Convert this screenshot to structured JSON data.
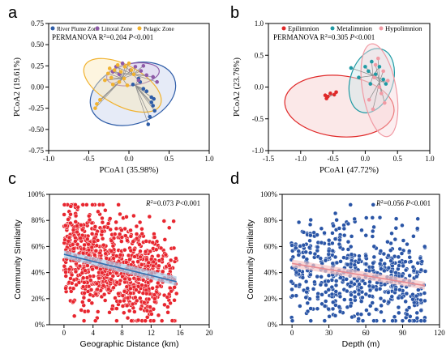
{
  "figure": {
    "panel_letters": [
      "a",
      "b",
      "c",
      "d"
    ]
  },
  "chart_data": [
    {
      "panel": "a",
      "type": "scatter",
      "subtype": "PCoA ordination with confidence ellipses and centroid spiders",
      "xlabel": "PCoA1 (35.98%)",
      "ylabel": "PCoA2 (19.61%)",
      "xlim": [
        -1.0,
        1.0
      ],
      "ylim": [
        -0.75,
        0.75
      ],
      "xticks": [
        "-1.0",
        "-0.5",
        "0.0",
        "0.5",
        "1.0"
      ],
      "yticks": [
        "-0.75",
        "-0.50",
        "-0.25",
        "0.00",
        "0.25",
        "0.50",
        "0.75"
      ],
      "annotation": {
        "prefix": "PERMANOVA R",
        "sup": "2",
        "mid": "=0.204 ",
        "p": "P",
        "suffix": "<0.001"
      },
      "legend_placement": "top",
      "grid": false,
      "series": [
        {
          "name": "River Plume Zone",
          "color": "#2f5da8",
          "fill": "#c8d3ee",
          "centroid": [
            0.08,
            0.02
          ],
          "ellipse": {
            "center": [
              0.05,
              -0.08
            ],
            "rx": 0.55,
            "ry": 0.35,
            "angle_deg": -20
          },
          "points": [
            [
              0.24,
              -0.44
            ],
            [
              0.26,
              -0.35
            ],
            [
              0.32,
              -0.28
            ],
            [
              0.28,
              -0.18
            ],
            [
              0.31,
              -0.14
            ],
            [
              0.28,
              -0.12
            ],
            [
              0.22,
              -0.05
            ],
            [
              0.18,
              -0.02
            ],
            [
              0.14,
              0.06
            ],
            [
              0.05,
              0.03
            ],
            [
              0.3,
              -0.22
            ],
            [
              0.12,
              0.1
            ]
          ]
        },
        {
          "name": "Littoral Zone",
          "color": "#8e5aa8",
          "fill": "#e2d2ee",
          "centroid": [
            0.05,
            0.15
          ],
          "ellipse": {
            "center": [
              0.05,
              0.15
            ],
            "rx": 0.33,
            "ry": 0.13,
            "angle_deg": -8
          },
          "points": [
            [
              -0.2,
              0.18
            ],
            [
              -0.16,
              0.24
            ],
            [
              -0.08,
              0.28
            ],
            [
              0.02,
              0.2
            ],
            [
              0.08,
              0.24
            ],
            [
              0.15,
              0.19
            ],
            [
              0.22,
              0.14
            ],
            [
              0.3,
              0.12
            ],
            [
              0.35,
              0.06
            ],
            [
              0.18,
              0.25
            ],
            [
              -0.12,
              0.15
            ],
            [
              0.12,
              0.08
            ]
          ]
        },
        {
          "name": "Pelagic Zone",
          "color": "#f1b22f",
          "fill": "#fbe8b8",
          "centroid": [
            -0.08,
            0.1
          ],
          "ellipse": {
            "center": [
              -0.08,
              0.02
            ],
            "rx": 0.53,
            "ry": 0.24,
            "angle_deg": 28
          },
          "points": [
            [
              -0.42,
              -0.25
            ],
            [
              -0.4,
              -0.2
            ],
            [
              -0.36,
              -0.15
            ],
            [
              -0.3,
              0.08
            ],
            [
              -0.26,
              0.16
            ],
            [
              -0.22,
              0.11
            ],
            [
              -0.18,
              0.2
            ],
            [
              -0.14,
              0.26
            ],
            [
              -0.1,
              0.18
            ],
            [
              -0.05,
              0.24
            ],
            [
              0.0,
              0.28
            ],
            [
              0.03,
              0.2
            ],
            [
              -0.2,
              0.03
            ],
            [
              -0.12,
              0.06
            ],
            [
              -0.06,
              0.1
            ],
            [
              0.06,
              0.15
            ],
            [
              -0.02,
              0.02
            ],
            [
              -0.24,
              0.22
            ]
          ]
        }
      ]
    },
    {
      "panel": "b",
      "type": "scatter",
      "subtype": "PCoA ordination with confidence ellipses and centroid spiders",
      "xlabel": "PCoA1 (47.72%)",
      "ylabel": "PCoA2 (23.76%)",
      "xlim": [
        -1.5,
        1.0
      ],
      "ylim": [
        -1.0,
        1.0
      ],
      "xticks": [
        "-1.5",
        "-1.0",
        "-0.5",
        "0.0",
        "0.5",
        "1.0"
      ],
      "yticks": [
        "-1.0",
        "-0.5",
        "0.0",
        "0.5",
        "1.0"
      ],
      "annotation": {
        "prefix": "PERMANOVA R",
        "sup": "2",
        "mid": "=0.305 ",
        "p": "P",
        "suffix": "<0.001"
      },
      "legend_placement": "top",
      "grid": false,
      "series": [
        {
          "name": "Epilimnion",
          "color": "#e02828",
          "fill": "#f6cccc",
          "centroid": [
            -0.5,
            -0.12
          ],
          "ellipse": {
            "center": [
              -0.4,
              -0.3
            ],
            "rx": 0.85,
            "ry": 0.48,
            "angle_deg": 6
          },
          "points": [
            [
              -0.62,
              -0.13
            ],
            [
              -0.58,
              -0.15
            ],
            [
              -0.54,
              -0.1
            ],
            [
              -0.48,
              -0.12
            ],
            [
              -0.6,
              -0.18
            ],
            [
              -0.45,
              -0.08
            ]
          ]
        },
        {
          "name": "Metalimnion",
          "color": "#1f9aa4",
          "fill": "#cbe9ec",
          "centroid": [
            0.12,
            0.18
          ],
          "ellipse": {
            "center": [
              0.1,
              0.1
            ],
            "rx": 0.33,
            "ry": 0.52,
            "angle_deg": 18
          },
          "points": [
            [
              -0.22,
              0.3
            ],
            [
              -0.1,
              0.15
            ],
            [
              0.0,
              0.32
            ],
            [
              0.05,
              0.25
            ],
            [
              0.1,
              0.4
            ],
            [
              0.16,
              0.2
            ],
            [
              0.22,
              0.32
            ],
            [
              0.28,
              0.12
            ],
            [
              0.32,
              0.05
            ],
            [
              0.08,
              0.05
            ]
          ]
        },
        {
          "name": "Hypolimnion",
          "color": "#f19aa4",
          "fill": "#f9d9dd",
          "centroid": [
            0.22,
            0.08
          ],
          "ellipse": {
            "center": [
              0.22,
              -0.05
            ],
            "rx": 0.26,
            "ry": 0.74,
            "angle_deg": -10
          },
          "points": [
            [
              0.06,
              -0.2
            ],
            [
              0.12,
              -0.35
            ],
            [
              0.16,
              0.35
            ],
            [
              0.2,
              0.45
            ],
            [
              0.25,
              -0.1
            ],
            [
              0.28,
              0.25
            ],
            [
              0.3,
              -0.25
            ],
            [
              0.35,
              0.1
            ],
            [
              0.22,
              0.0
            ],
            [
              0.14,
              0.15
            ]
          ]
        }
      ]
    },
    {
      "panel": "c",
      "type": "scatter",
      "subtype": "distance-decay scatter with linear fit and confidence band",
      "xlabel": "Geographic Distance (km)",
      "ylabel": "Community Similarity",
      "xlim": [
        -2,
        20
      ],
      "ylim": [
        0,
        100
      ],
      "xticks": [
        "0",
        "4",
        "8",
        "12",
        "16",
        "20"
      ],
      "yticks": [
        "0%",
        "20%",
        "40%",
        "60%",
        "80%",
        "100%"
      ],
      "annotation": {
        "r": "R",
        "sup": "2",
        "mid": "=0.073 ",
        "p": "P",
        "suffix": "<0.001"
      },
      "grid": false,
      "series": [
        {
          "color": "#e8262f",
          "edge": "#ffffff",
          "n_points": 900,
          "distribution": "dense scatter over x 0–15.5 km, y 5%–92%",
          "fit": {
            "x": [
              0,
              15.5
            ],
            "y": [
              54,
              33
            ],
            "color": "#2f6fb0"
          },
          "band": {
            "lower": [
              [
                0,
                51
              ],
              [
                15.5,
                30
              ]
            ],
            "upper": [
              [
                0,
                57
              ],
              [
                15.5,
                37
              ]
            ],
            "color": "#a8cce8"
          }
        }
      ]
    },
    {
      "panel": "d",
      "type": "scatter",
      "subtype": "depth-decay scatter with linear fit and confidence band",
      "xlabel": "Depth (m)",
      "ylabel": "Community Similarity",
      "xlim": [
        -8,
        120
      ],
      "ylim": [
        0,
        100
      ],
      "xticks": [
        "0",
        "30",
        "60",
        "90",
        "120"
      ],
      "yticks": [
        "0%",
        "20%",
        "40%",
        "60%",
        "80%",
        "100%"
      ],
      "annotation": {
        "r": "R",
        "sup": "2",
        "mid": "=0.056 ",
        "p": "P",
        "suffix": "<0.001"
      },
      "grid": false,
      "series": [
        {
          "color": "#2a55a6",
          "edge": "#ffffff",
          "n_points": 600,
          "distribution": "vertical stripes at discrete depth differences, x 0–108 m, y 2%–92%",
          "fit": {
            "x": [
              0,
              108
            ],
            "y": [
              47,
              30
            ],
            "color": "#e88a92"
          },
          "band": {
            "lower": [
              [
                0,
                44
              ],
              [
                108,
                27
              ]
            ],
            "upper": [
              [
                0,
                50
              ],
              [
                108,
                33
              ]
            ],
            "color": "#f6c6c6"
          }
        }
      ]
    }
  ]
}
